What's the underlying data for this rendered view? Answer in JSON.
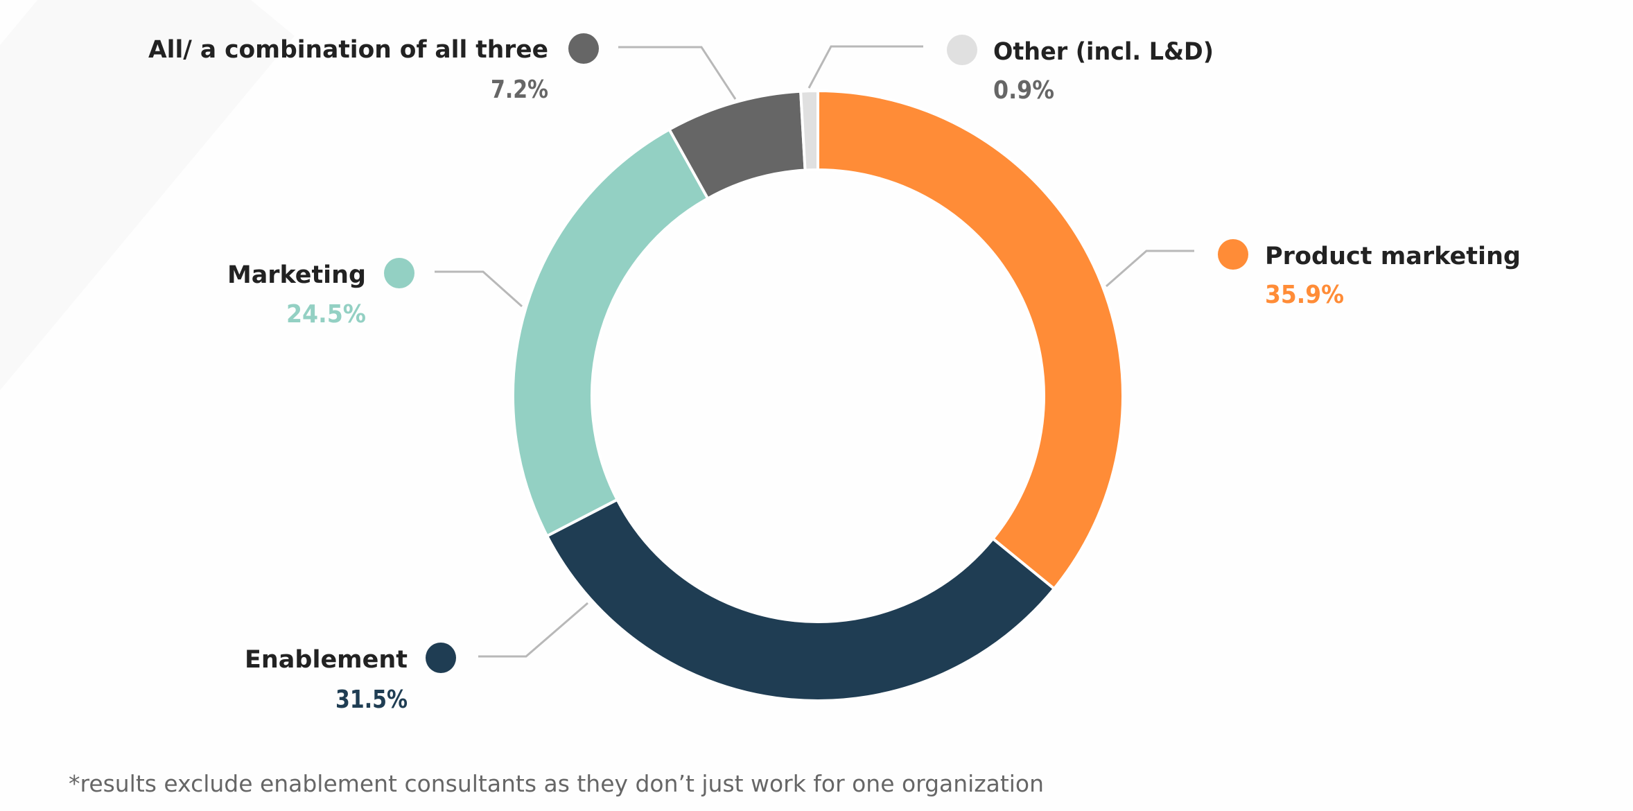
{
  "chart_data": {
    "type": "pie",
    "variant": "donut",
    "start": "top",
    "direction": "clockwise",
    "unit": "%",
    "slices": [
      {
        "key": "product-marketing",
        "label": "Product marketing",
        "value": 35.9,
        "display": "35.9%",
        "color": "#ff8c37"
      },
      {
        "key": "enablement",
        "label": "Enablement",
        "value": 31.5,
        "display": "31.5%",
        "color": "#1f3d53"
      },
      {
        "key": "marketing",
        "label": "Marketing",
        "value": 24.5,
        "display": "24.5%",
        "color": "#93d0c3"
      },
      {
        "key": "all-three",
        "label": "All/ a combination of all three",
        "value": 7.2,
        "display": "7.2%",
        "color": "#666666"
      },
      {
        "key": "other",
        "label": "Other (incl. L&D)",
        "value": 0.9,
        "display": "0.9%",
        "color": "#e0e0e0"
      }
    ],
    "legend": "callouts",
    "footnote": "*results exclude enablement consultants as they don’t just work for one organization"
  },
  "colors": {
    "label_text": "#222222",
    "percent_gray": "#666666",
    "leader_line": "#b8b8b8",
    "background_shape": "#f9f9f9",
    "separator": "#ffffff"
  }
}
